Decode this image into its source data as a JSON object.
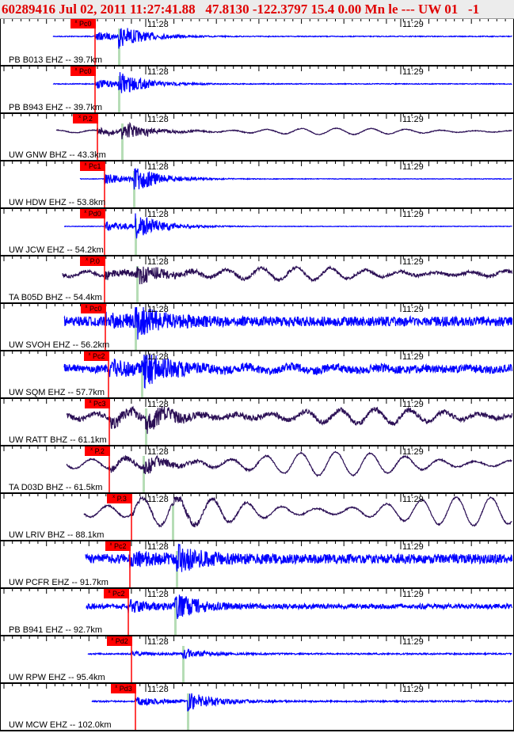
{
  "header": {
    "title": "60289416 Jul 02, 2011 11:27:41.88   47.8130 -122.3797 15.4 0.00 Mn le --- UW 01   -1"
  },
  "time_labels": [
    "11:28",
    "11:29"
  ],
  "colors": {
    "short_period": "#0000ff",
    "broadband": "#2b0f55",
    "pick": "#ff0000",
    "phase_line": "#b6ddb6",
    "header_text": "#e00000"
  },
  "channels": [
    {
      "station": "PB B013 EHZ -- 39.7km",
      "pick": "Pc0",
      "type": "short_period"
    },
    {
      "station": "PB B943 EHZ -- 39.7km",
      "pick": "Pc0",
      "type": "short_period"
    },
    {
      "station": "UW GNW BHZ -- 43.3km",
      "pick": "P.2",
      "type": "broadband"
    },
    {
      "station": "UW HDW EHZ -- 53.8km",
      "pick": "Pc1",
      "type": "short_period"
    },
    {
      "station": "UW JCW EHZ -- 54.2km",
      "pick": "Pd0",
      "type": "short_period"
    },
    {
      "station": "TA B05D BHZ -- 54.4km",
      "pick": "P.0",
      "type": "broadband"
    },
    {
      "station": "UW SVOH EHZ -- 56.2km",
      "pick": "Pc0",
      "type": "short_period"
    },
    {
      "station": "UW SQM EHZ -- 57.7km",
      "pick": "Pc2",
      "type": "short_period"
    },
    {
      "station": "UW RATT BHZ -- 61.1km",
      "pick": "Pc3",
      "type": "broadband"
    },
    {
      "station": "TA D03D BHZ -- 61.5km",
      "pick": "P.2",
      "type": "broadband"
    },
    {
      "station": "UW LRIV BHZ -- 88.1km",
      "pick": "P.3",
      "type": "broadband"
    },
    {
      "station": "UW PCFR EHZ -- 91.7km",
      "pick": "Pc2",
      "type": "short_period"
    },
    {
      "station": "PB B941 EHZ -- 92.7km",
      "pick": "Pc2",
      "type": "short_period"
    },
    {
      "station": "UW RPW EHZ -- 95.4km",
      "pick": "Pd2",
      "type": "short_period"
    },
    {
      "station": "UW MCW EHZ -- 102.0km",
      "pick": "Pd3",
      "type": "short_period"
    }
  ]
}
